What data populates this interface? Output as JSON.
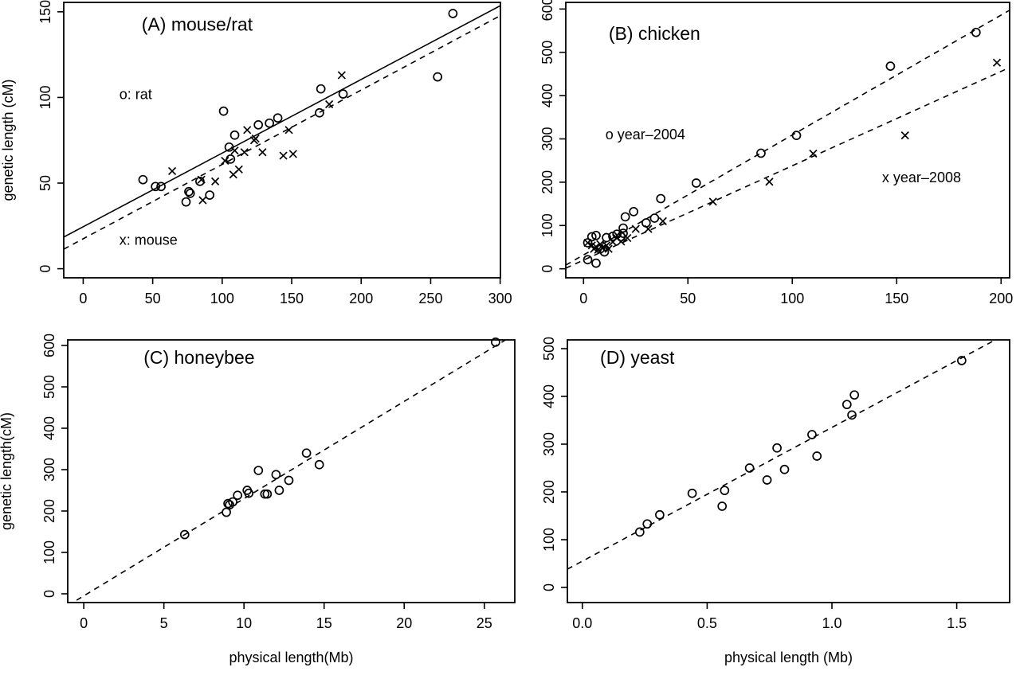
{
  "figure": {
    "background": "#ffffff",
    "foreground": "#000000",
    "description": "Four scatter plots of genetic length (cM) versus physical length (Mb)"
  },
  "chart_data": [
    {
      "id": "A",
      "type": "scatter",
      "title": "(A) mouse/rat",
      "title_pos": {
        "x": 82,
        "y": 139
      },
      "xlabel": "",
      "ylabel": "genetic length (cM)",
      "xlim": [
        -14.0,
        300.2
      ],
      "ylim": [
        -5.3,
        155.5
      ],
      "xticks": [
        {
          "v": 0,
          "label": "0"
        },
        {
          "v": 50,
          "label": "50"
        },
        {
          "v": 100,
          "label": "100"
        },
        {
          "v": 150,
          "label": "150"
        },
        {
          "v": 200,
          "label": "200"
        },
        {
          "v": 250,
          "label": "250"
        },
        {
          "v": 300,
          "label": "300"
        }
      ],
      "yticks": [
        {
          "v": 0,
          "label": "0"
        },
        {
          "v": 50,
          "label": "50"
        },
        {
          "v": 100,
          "label": "100"
        },
        {
          "v": 150,
          "label": "150"
        }
      ],
      "annotations": [
        {
          "role": "legend",
          "text": "o: rat",
          "x": 26,
          "y": 99,
          "anchor": "start"
        },
        {
          "role": "legend",
          "text": "x: mouse",
          "x": 26,
          "y": 14,
          "anchor": "start"
        }
      ],
      "series": [
        {
          "name": "rat",
          "marker": "circle",
          "points": [
            [
              43,
              52
            ],
            [
              52,
              48
            ],
            [
              56,
              48
            ],
            [
              74,
              39
            ],
            [
              76,
              45
            ],
            [
              77,
              44
            ],
            [
              84,
              51
            ],
            [
              91,
              43
            ],
            [
              101,
              92
            ],
            [
              105,
              71
            ],
            [
              106,
              64
            ],
            [
              109,
              78
            ],
            [
              126,
              84
            ],
            [
              134,
              85
            ],
            [
              140,
              88
            ],
            [
              170,
              91
            ],
            [
              171,
              105
            ],
            [
              187,
              102
            ],
            [
              255,
              112
            ],
            [
              266,
              149
            ]
          ]
        },
        {
          "name": "mouse",
          "marker": "x",
          "points": [
            [
              64,
              57
            ],
            [
              85,
              52
            ],
            [
              86,
              40
            ],
            [
              95,
              51
            ],
            [
              102,
              63
            ],
            [
              108,
              55
            ],
            [
              109,
              69
            ],
            [
              112,
              58
            ],
            [
              116,
              68
            ],
            [
              118,
              81
            ],
            [
              123,
              75
            ],
            [
              124,
              76
            ],
            [
              129,
              68
            ],
            [
              144,
              66
            ],
            [
              148,
              81
            ],
            [
              151,
              67
            ],
            [
              177,
              96
            ],
            [
              186,
              113
            ]
          ]
        }
      ],
      "lines": [
        {
          "style": "solid",
          "slope": 0.43,
          "intercept": 24.5
        },
        {
          "style": "dashed",
          "slope": 0.434,
          "intercept": 17.5
        }
      ]
    },
    {
      "id": "B",
      "type": "scatter",
      "title": "(B) chicken",
      "title_pos": {
        "x": 34,
        "y": 529
      },
      "xlabel": "",
      "ylabel": "",
      "xlim": [
        -8.5,
        204.1
      ],
      "ylim": [
        -20.8,
        615.3
      ],
      "xticks": [
        {
          "v": 0,
          "label": "0"
        },
        {
          "v": 50,
          "label": "50"
        },
        {
          "v": 100,
          "label": "100"
        },
        {
          "v": 150,
          "label": "150"
        },
        {
          "v": 200,
          "label": "200"
        }
      ],
      "yticks": [
        {
          "v": 0,
          "label": "0"
        },
        {
          "v": 100,
          "label": "100"
        },
        {
          "v": 200,
          "label": "200"
        },
        {
          "v": 300,
          "label": "300"
        },
        {
          "v": 400,
          "label": "400"
        },
        {
          "v": 500,
          "label": "500"
        },
        {
          "v": 600,
          "label": "600"
        }
      ],
      "annotations": [
        {
          "role": "legend",
          "text": "o year–2004",
          "x": 10.5,
          "y": 299,
          "anchor": "start"
        },
        {
          "role": "legend",
          "text": "x year–2008",
          "x": 143,
          "y": 200,
          "anchor": "start"
        }
      ],
      "series": [
        {
          "name": "year-2004",
          "marker": "circle",
          "points": [
            [
              2,
              21
            ],
            [
              2,
              60
            ],
            [
              4,
              74
            ],
            [
              6,
              13
            ],
            [
              6,
              77
            ],
            [
              8,
              46
            ],
            [
              10,
              39
            ],
            [
              11,
              72
            ],
            [
              14,
              75
            ],
            [
              16,
              80
            ],
            [
              18,
              74
            ],
            [
              19,
              82
            ],
            [
              19,
              94
            ],
            [
              20,
              120
            ],
            [
              24,
              132
            ],
            [
              30,
              106
            ],
            [
              34,
              117
            ],
            [
              37,
              162
            ],
            [
              54,
              198
            ],
            [
              85,
              267
            ],
            [
              102,
              308
            ],
            [
              147,
              468
            ],
            [
              188,
              546
            ]
          ]
        },
        {
          "name": "year-2008",
          "marker": "x",
          "points": [
            [
              2,
              60
            ],
            [
              4,
              54
            ],
            [
              5,
              46
            ],
            [
              6,
              51
            ],
            [
              7,
              44
            ],
            [
              8,
              57
            ],
            [
              9,
              48
            ],
            [
              11,
              54
            ],
            [
              12,
              46
            ],
            [
              14,
              62
            ],
            [
              16,
              71
            ],
            [
              18,
              63
            ],
            [
              21,
              71
            ],
            [
              25,
              92
            ],
            [
              31,
              92
            ],
            [
              38,
              110
            ],
            [
              62,
              155
            ],
            [
              89,
              201
            ],
            [
              110,
              266
            ],
            [
              154,
              308
            ],
            [
              198,
              476
            ]
          ]
        }
      ],
      "lines": [
        {
          "style": "dashed",
          "slope": 2.77,
          "intercept": 32
        },
        {
          "style": "dashed",
          "slope": 2.18,
          "intercept": 20
        }
      ]
    },
    {
      "id": "C",
      "type": "scatter",
      "title": "(C) honeybee",
      "title_pos": {
        "x": 7.2,
        "y": 556
      },
      "xlabel": "physical length(Mb)",
      "ylabel": "genetic length(cM)",
      "xlim": [
        -1.0,
        26.9
      ],
      "ylim": [
        -21.2,
        613.5
      ],
      "xticks": [
        {
          "v": 0,
          "label": "0"
        },
        {
          "v": 5,
          "label": "5"
        },
        {
          "v": 10,
          "label": "10"
        },
        {
          "v": 15,
          "label": "15"
        },
        {
          "v": 20,
          "label": "20"
        },
        {
          "v": 25,
          "label": "25"
        }
      ],
      "yticks": [
        {
          "v": 0,
          "label": "0"
        },
        {
          "v": 100,
          "label": "100"
        },
        {
          "v": 200,
          "label": "200"
        },
        {
          "v": 300,
          "label": "300"
        },
        {
          "v": 400,
          "label": "400"
        },
        {
          "v": 500,
          "label": "500"
        },
        {
          "v": 600,
          "label": "600"
        }
      ],
      "annotations": [],
      "series": [
        {
          "name": "honeybee",
          "marker": "circle",
          "points": [
            [
              6.3,
              143
            ],
            [
              8.9,
              197
            ],
            [
              9.0,
              218
            ],
            [
              9.1,
              215
            ],
            [
              9.3,
              222
            ],
            [
              9.6,
              238
            ],
            [
              10.2,
              250
            ],
            [
              10.3,
              243
            ],
            [
              10.9,
              298
            ],
            [
              11.3,
              241
            ],
            [
              11.45,
              241
            ],
            [
              12.0,
              288
            ],
            [
              12.2,
              250
            ],
            [
              12.8,
              274
            ],
            [
              13.9,
              340
            ],
            [
              14.7,
              312
            ],
            [
              25.7,
              608
            ]
          ]
        }
      ],
      "lines": [
        {
          "style": "dashed",
          "slope": 23.5,
          "intercept": -5
        }
      ]
    },
    {
      "id": "D",
      "type": "scatter",
      "title": "(D) yeast",
      "title_pos": {
        "x": 0.22,
        "y": 468
      },
      "xlabel": "physical length (Mb)",
      "ylabel": "",
      "xlim": [
        -0.06,
        1.712
      ],
      "ylim": [
        -31.7,
        518.3
      ],
      "xticks": [
        {
          "v": 0,
          "label": "0.0"
        },
        {
          "v": 0.5,
          "label": "0.5"
        },
        {
          "v": 1.0,
          "label": "1.0"
        },
        {
          "v": 1.5,
          "label": "1.5"
        }
      ],
      "yticks": [
        {
          "v": 0,
          "label": "0"
        },
        {
          "v": 100,
          "label": "100"
        },
        {
          "v": 200,
          "label": "200"
        },
        {
          "v": 300,
          "label": "300"
        },
        {
          "v": 400,
          "label": "400"
        },
        {
          "v": 500,
          "label": "500"
        }
      ],
      "annotations": [],
      "series": [
        {
          "name": "yeast",
          "marker": "circle",
          "points": [
            [
              0.23,
              116
            ],
            [
              0.26,
              133
            ],
            [
              0.31,
              152
            ],
            [
              0.44,
              197
            ],
            [
              0.56,
              170
            ],
            [
              0.57,
              203
            ],
            [
              0.67,
              250
            ],
            [
              0.74,
              225
            ],
            [
              0.78,
              292
            ],
            [
              0.81,
              247
            ],
            [
              0.92,
              320
            ],
            [
              0.94,
              275
            ],
            [
              1.06,
              383
            ],
            [
              1.08,
              361
            ],
            [
              1.09,
              403
            ],
            [
              1.52,
              475
            ]
          ]
        }
      ],
      "lines": [
        {
          "style": "dashed",
          "slope": 280,
          "intercept": 55
        }
      ]
    }
  ]
}
